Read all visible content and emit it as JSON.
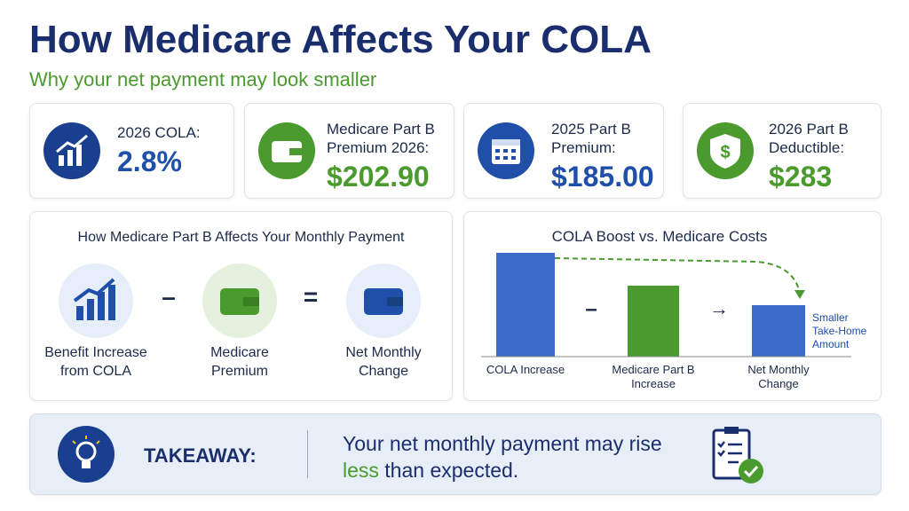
{
  "header": {
    "title": "How Medicare Affects Your COLA",
    "subtitle": "Why your net payment may look smaller"
  },
  "stats": [
    {
      "label": "2026 COLA:",
      "value": "2.8%"
    },
    {
      "label": "Medicare Part B Premium 2026:",
      "value": "$202.90"
    },
    {
      "label": "2025 Part B Premium:",
      "value": "$185.00"
    },
    {
      "label": "2026 Part B Deductible:",
      "value": "$283"
    }
  ],
  "flow": {
    "title": "How Medicare Part B Affects Your Monthly Payment",
    "items": [
      "Benefit Increase from COLA",
      "Medicare Premium",
      "Net Monthly Change"
    ],
    "operators": [
      "–",
      "="
    ]
  },
  "comparison": {
    "title": "COLA Boost vs. Medicare Costs",
    "bars": [
      "COLA Increase",
      "Medicare Part B Increase",
      "Net Monthly Change"
    ],
    "operators": [
      "–",
      "→"
    ],
    "note": "Smaller Take-Home Amount"
  },
  "takeaway": {
    "label": "TAKEAWAY:",
    "text": "Your net monthly payment may rise",
    "highlight": "less",
    "rest": "than expected."
  }
}
